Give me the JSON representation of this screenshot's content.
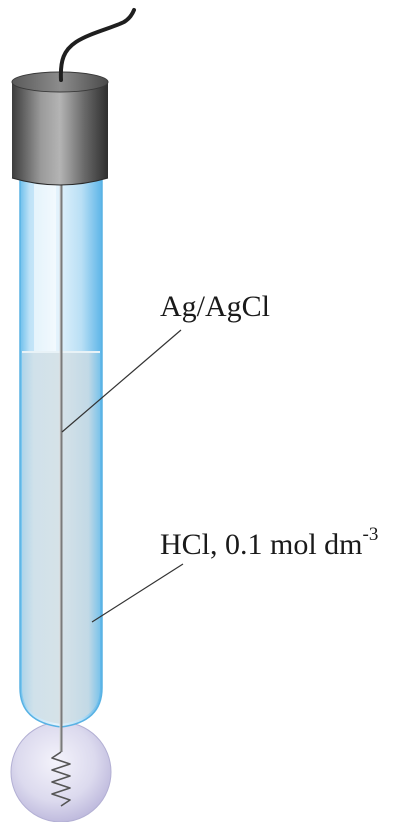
{
  "labels": {
    "electrode": "Ag/AgCl",
    "solution_main": "HCl, 0.1 mol dm",
    "solution_exponent": "-3"
  },
  "colors": {
    "tube_glass": "#c8e4f6",
    "tube_edge": "#5ab4e6",
    "solution": "#c7dbe6",
    "cap_dark": "#3a3a3a",
    "cap_light": "#a8a8a8",
    "wire": "#222222",
    "bulb": "#dcd9ef"
  },
  "icons": {
    "cap": "electrode-cap",
    "cable": "lead-cable",
    "bulb": "glass-bulb",
    "coil": "silver-wire-coil"
  }
}
